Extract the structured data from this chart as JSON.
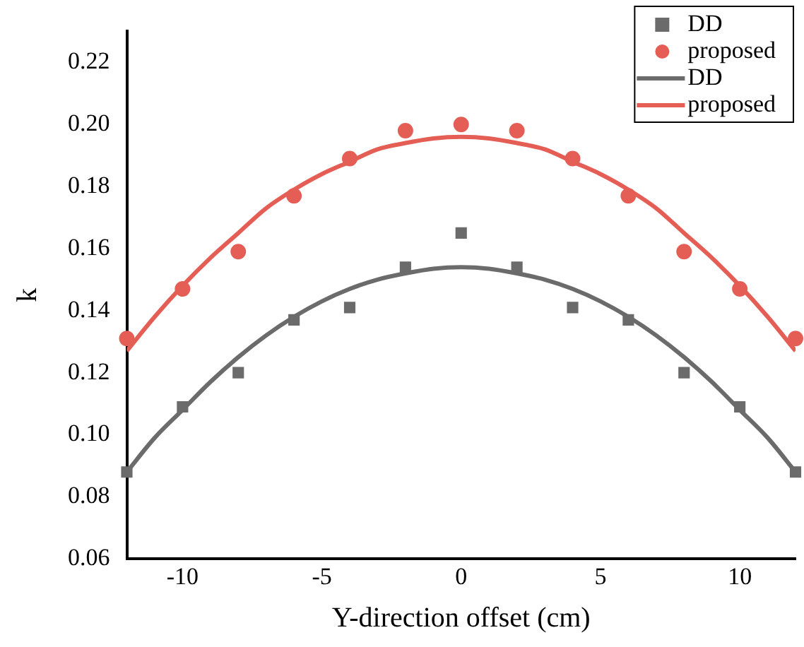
{
  "chart_data": {
    "type": "scatter",
    "xlabel": "Y-direction offset (cm)",
    "ylabel": "k",
    "xlim": [
      -12,
      12
    ],
    "xticks": [
      -10,
      -5,
      0,
      5,
      10
    ],
    "ylim": [
      0.06,
      0.23
    ],
    "yticks": [
      {
        "value": 0.06,
        "label": "0.06"
      },
      {
        "value": 0.08,
        "label": "0.08"
      },
      {
        "value": 0.1,
        "label": "0.10"
      },
      {
        "value": 0.12,
        "label": "0.12"
      },
      {
        "value": 0.14,
        "label": "0.14"
      },
      {
        "value": 0.16,
        "label": "0.16"
      },
      {
        "value": 0.18,
        "label": "0.18"
      },
      {
        "value": 0.2,
        "label": "0.20"
      },
      {
        "value": 0.22,
        "label": "0.22"
      }
    ],
    "grid": false,
    "legend": "top right",
    "series": [
      {
        "name": "DD",
        "type": "scatter",
        "marker": "square",
        "color": "#6b6b6b",
        "x": [
          -12,
          -10,
          -8,
          -6,
          -4,
          -2,
          0,
          2,
          4,
          6,
          8,
          10,
          12
        ],
        "values": [
          0.088,
          0.109,
          0.12,
          0.137,
          0.141,
          0.154,
          0.165,
          0.154,
          0.141,
          0.137,
          0.12,
          0.109,
          0.088
        ]
      },
      {
        "name": "proposed",
        "type": "scatter",
        "marker": "circle",
        "color": "#e45e56",
        "x": [
          -12,
          -10,
          -8,
          -6,
          -4,
          -2,
          0,
          2,
          4,
          6,
          8,
          10,
          12
        ],
        "values": [
          0.131,
          0.147,
          0.159,
          0.177,
          0.189,
          0.198,
          0.2,
          0.198,
          0.189,
          0.177,
          0.159,
          0.147,
          0.131
        ]
      },
      {
        "name": "DD",
        "type": "line",
        "marker": "none",
        "line_style": "solid",
        "color": "#6b6b6b",
        "x": [
          -12,
          -11,
          -10,
          -9,
          -8,
          -7,
          -6,
          -5,
          -4,
          -3,
          -2,
          -1,
          0,
          1,
          2,
          3,
          4,
          5,
          6,
          7,
          8,
          9,
          10,
          11,
          12
        ],
        "values": [
          0.088,
          0.099,
          0.108,
          0.117,
          0.125,
          0.132,
          0.138,
          0.143,
          0.147,
          0.15,
          0.152,
          0.1535,
          0.154,
          0.1535,
          0.152,
          0.15,
          0.147,
          0.143,
          0.138,
          0.132,
          0.125,
          0.117,
          0.108,
          0.099,
          0.088
        ]
      },
      {
        "name": "proposed",
        "type": "line",
        "marker": "none",
        "line_style": "solid",
        "color": "#e45e56",
        "x": [
          -12,
          -11,
          -10,
          -9,
          -8,
          -7,
          -6,
          -5,
          -4,
          -3,
          -2,
          -1,
          0,
          1,
          2,
          3,
          4,
          5,
          6,
          7,
          8,
          9,
          10,
          11,
          12
        ],
        "values": [
          0.127,
          0.138,
          0.148,
          0.157,
          0.165,
          0.173,
          0.179,
          0.184,
          0.188,
          0.192,
          0.194,
          0.1955,
          0.196,
          0.1955,
          0.194,
          0.192,
          0.188,
          0.184,
          0.179,
          0.173,
          0.165,
          0.157,
          0.148,
          0.138,
          0.127
        ]
      }
    ]
  }
}
